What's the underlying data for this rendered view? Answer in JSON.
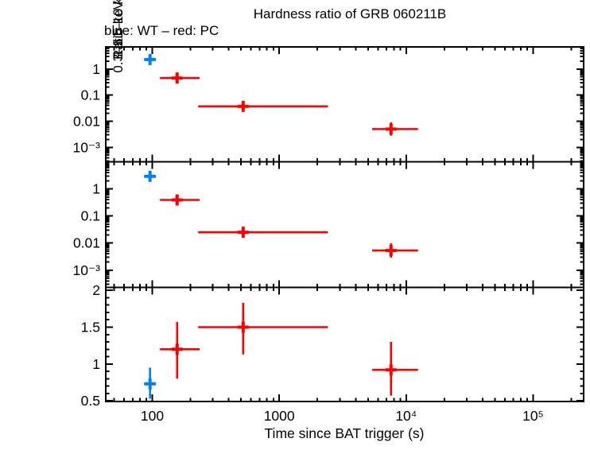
{
  "title": "Hardness ratio of GRB 060211B",
  "subtitle": "blue: WT – red: PC",
  "chart_data": {
    "type": "scatter",
    "x_axis": {
      "label": "Time since BAT trigger (s)",
      "scale": "log",
      "lim": [
        43,
        250000
      ],
      "major_ticks": [
        100,
        1000,
        10000,
        100000
      ],
      "tick_labels": [
        "100",
        "1000",
        "10⁴",
        "10⁵"
      ]
    },
    "legend": {
      "blue": "WT",
      "red": "PC"
    },
    "colors": {
      "wt": "#0080ff",
      "pc": "#ff0000",
      "axes": "#000000",
      "background": "#ffffff"
    },
    "panels": [
      {
        "ylabel": "1.51–10 keV c/s",
        "yscale": "log",
        "ylim": [
          0.00028,
          7
        ],
        "major_ticks": [
          1,
          0.1,
          0.01,
          0.001
        ],
        "tick_labels": [
          "1",
          "0.1",
          "0.01",
          "10⁻³"
        ],
        "series": [
          {
            "name": "WT",
            "color_key": "wt",
            "points": [
              {
                "t": 96,
                "t_lo": 86,
                "t_hi": 107,
                "y": 2.3,
                "y_lo": 1.7,
                "y_hi": 3.2
              }
            ]
          },
          {
            "name": "PC",
            "color_key": "pc",
            "points": [
              {
                "t": 157,
                "t_lo": 115,
                "t_hi": 236,
                "y": 0.45,
                "y_lo": 0.32,
                "y_hi": 0.63
              },
              {
                "t": 520,
                "t_lo": 230,
                "t_hi": 2420,
                "y": 0.037,
                "y_lo": 0.025,
                "y_hi": 0.056
              },
              {
                "t": 7600,
                "t_lo": 5400,
                "t_hi": 12400,
                "y": 0.005,
                "y_lo": 0.0028,
                "y_hi": 0.009
              }
            ]
          }
        ]
      },
      {
        "ylabel": "0.3–1.5 keV c/s",
        "yscale": "log",
        "ylim": [
          0.00023,
          10
        ],
        "major_ticks": [
          1,
          0.1,
          0.01,
          0.001
        ],
        "tick_labels": [
          "1",
          "0.1",
          "0.01",
          "10⁻³"
        ],
        "series": [
          {
            "name": "WT",
            "color_key": "wt",
            "points": [
              {
                "t": 96,
                "t_lo": 86,
                "t_hi": 107,
                "y": 2.9,
                "y_lo": 2.0,
                "y_hi": 4.2
              }
            ]
          },
          {
            "name": "PC",
            "color_key": "pc",
            "points": [
              {
                "t": 157,
                "t_lo": 115,
                "t_hi": 236,
                "y": 0.39,
                "y_lo": 0.27,
                "y_hi": 0.56
              },
              {
                "t": 520,
                "t_lo": 230,
                "t_hi": 2420,
                "y": 0.025,
                "y_lo": 0.017,
                "y_hi": 0.035
              },
              {
                "t": 7600,
                "t_lo": 5400,
                "t_hi": 12400,
                "y": 0.0053,
                "y_lo": 0.0029,
                "y_hi": 0.0097
              }
            ]
          }
        ]
      },
      {
        "ylabel": "Ratio",
        "yscale": "linear",
        "ylim": [
          0.49,
          2.04
        ],
        "major_ticks": [
          0.5,
          1,
          1.5,
          2
        ],
        "tick_labels": [
          "0.5",
          "1",
          "1.5",
          "2"
        ],
        "minor_step": 0.1,
        "series": [
          {
            "name": "WT",
            "color_key": "wt",
            "points": [
              {
                "t": 96,
                "t_lo": 86,
                "t_hi": 107,
                "y": 0.73,
                "y_lo": 0.53,
                "y_hi": 0.95
              }
            ]
          },
          {
            "name": "PC",
            "color_key": "pc",
            "points": [
              {
                "t": 157,
                "t_lo": 115,
                "t_hi": 236,
                "y": 1.2,
                "y_lo": 0.8,
                "y_hi": 1.57
              },
              {
                "t": 520,
                "t_lo": 230,
                "t_hi": 2420,
                "y": 1.5,
                "y_lo": 1.13,
                "y_hi": 1.83
              },
              {
                "t": 7600,
                "t_lo": 5400,
                "t_hi": 12400,
                "y": 0.92,
                "y_lo": 0.57,
                "y_hi": 1.3
              }
            ]
          }
        ]
      }
    ]
  }
}
